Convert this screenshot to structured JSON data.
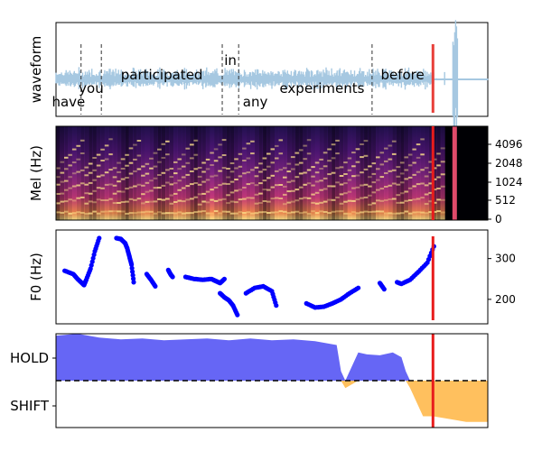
{
  "chart_data": [
    {
      "type": "line",
      "panel": "waveform",
      "ylabel": "waveform",
      "xlim": [
        0,
        1
      ],
      "ylim": [
        -1,
        1
      ],
      "words": [
        {
          "text": "have",
          "start": 0.0,
          "end": 0.058,
          "level": "low"
        },
        {
          "text": "you",
          "start": 0.058,
          "end": 0.105,
          "level": "mid"
        },
        {
          "text": "participated",
          "start": 0.105,
          "end": 0.385,
          "level": "high"
        },
        {
          "text": "in",
          "start": 0.385,
          "end": 0.423,
          "level": "top"
        },
        {
          "text": "any",
          "start": 0.423,
          "end": 0.5,
          "level": "low"
        },
        {
          "text": "experiments",
          "start": 0.5,
          "end": 0.732,
          "level": "mid"
        },
        {
          "text": "before",
          "start": 0.732,
          "end": 0.873,
          "level": "high"
        }
      ],
      "boundaries": [
        0.058,
        0.105,
        0.385,
        0.423,
        0.732
      ],
      "marker_x": 0.873,
      "marker_color": "#e8403a",
      "wave_color": "#a6c8e1"
    },
    {
      "type": "heatmap",
      "panel": "mel",
      "ylabel": "Mel (Hz)",
      "yticks": [
        "0",
        "512",
        "1024",
        "2048",
        "4096"
      ],
      "marker_x": 0.873,
      "marker_color": "#e81c1c",
      "colormap": "magma"
    },
    {
      "type": "scatter",
      "panel": "f0",
      "ylabel": "F0 (Hz)",
      "ylim": [
        140,
        370
      ],
      "yticks": [
        200,
        300
      ],
      "point_color": "#0000ff",
      "marker_x": 0.873,
      "marker_color": "#e81c1c",
      "segments": [
        {
          "x": [
            0.02,
            0.04,
            0.05,
            0.06,
            0.065,
            0.07,
            0.08,
            0.09,
            0.1
          ],
          "y": [
            270,
            262,
            250,
            240,
            235,
            248,
            275,
            318,
            350
          ]
        },
        {
          "x": [
            0.14,
            0.15,
            0.16,
            0.165,
            0.17,
            0.175,
            0.18
          ],
          "y": [
            350,
            348,
            338,
            325,
            305,
            285,
            242
          ]
        },
        {
          "x": [
            0.21,
            0.22,
            0.23
          ],
          "y": [
            262,
            248,
            232
          ]
        },
        {
          "x": [
            0.26,
            0.265,
            0.27
          ],
          "y": [
            272,
            262,
            255
          ]
        },
        {
          "x": [
            0.3,
            0.32,
            0.34,
            0.36,
            0.37,
            0.38,
            0.39
          ],
          "y": [
            255,
            250,
            248,
            250,
            245,
            240,
            250
          ]
        },
        {
          "x": [
            0.38,
            0.39,
            0.4,
            0.41,
            0.42
          ],
          "y": [
            215,
            205,
            198,
            185,
            162
          ]
        },
        {
          "x": [
            0.44,
            0.46,
            0.48,
            0.5,
            0.51
          ],
          "y": [
            215,
            228,
            232,
            220,
            185
          ]
        },
        {
          "x": [
            0.58,
            0.6,
            0.62,
            0.64,
            0.66,
            0.68,
            0.7
          ],
          "y": [
            190,
            180,
            182,
            190,
            200,
            215,
            228
          ]
        },
        {
          "x": [
            0.75,
            0.76
          ],
          "y": [
            240,
            225
          ]
        },
        {
          "x": [
            0.79,
            0.8,
            0.82,
            0.84,
            0.86,
            0.875
          ],
          "y": [
            242,
            238,
            248,
            268,
            290,
            330
          ]
        }
      ]
    },
    {
      "type": "area",
      "panel": "turn-taking",
      "categories": [
        "HOLD",
        "SHIFT"
      ],
      "hold_color": "#6666f5",
      "shift_color": "#ffc05e",
      "threshold": 0.5,
      "marker_x": 0.873,
      "marker_color": "#e81c1c",
      "x": [
        0,
        0.05,
        0.1,
        0.15,
        0.2,
        0.25,
        0.3,
        0.35,
        0.4,
        0.45,
        0.5,
        0.55,
        0.6,
        0.65,
        0.66,
        0.67,
        0.7,
        0.72,
        0.75,
        0.78,
        0.8,
        0.81,
        0.82,
        0.85,
        0.873,
        0.9,
        0.95,
        1.0
      ],
      "y": [
        0.98,
        1.0,
        0.96,
        0.94,
        0.95,
        0.93,
        0.94,
        0.95,
        0.93,
        0.95,
        0.93,
        0.94,
        0.92,
        0.88,
        0.6,
        0.42,
        0.8,
        0.78,
        0.77,
        0.8,
        0.75,
        0.6,
        0.42,
        0.12,
        0.12,
        0.1,
        0.06,
        0.06
      ]
    }
  ]
}
